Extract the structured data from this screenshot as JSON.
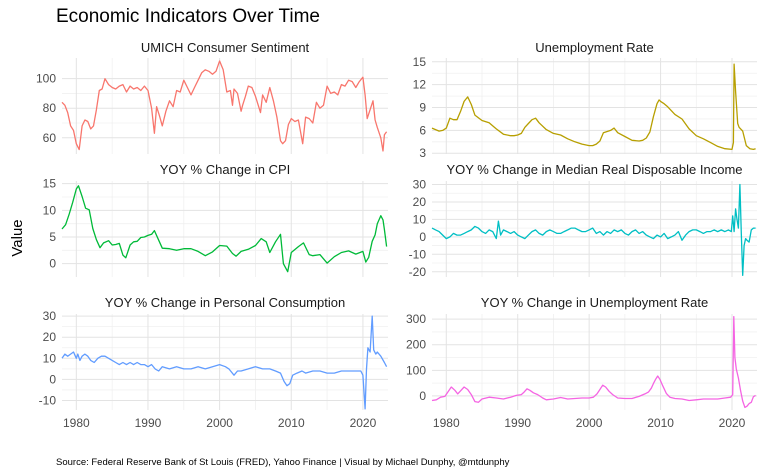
{
  "page": {
    "title": "Economic Indicators Over Time",
    "ylabel": "Value",
    "caption": "Source: Federal Reserve Bank of St Louis (FRED), Yahoo Finance | Visual by Michael Dunphy, @mtdunphy"
  },
  "chart_data": [
    {
      "type": "line",
      "title": "UMICH Consumer Sentiment",
      "color": "#F8766D",
      "xlim": [
        1978,
        2023.5
      ],
      "ylim": [
        49,
        114
      ],
      "yticks": [
        60,
        80,
        100
      ],
      "x": [
        1978.0,
        1978.4,
        1978.8,
        1979.2,
        1979.6,
        1980.0,
        1980.4,
        1980.8,
        1981.2,
        1981.6,
        1982.0,
        1982.4,
        1982.8,
        1983.2,
        1983.6,
        1984.0,
        1984.5,
        1985.0,
        1985.5,
        1986.0,
        1986.5,
        1987.0,
        1987.5,
        1988.0,
        1988.5,
        1989.0,
        1989.5,
        1990.0,
        1990.5,
        1990.9,
        1991.2,
        1991.6,
        1992.0,
        1992.5,
        1993.0,
        1993.5,
        1994.0,
        1994.5,
        1995.0,
        1995.5,
        1996.0,
        1996.5,
        1997.0,
        1997.5,
        1998.0,
        1998.5,
        1999.0,
        1999.5,
        2000.0,
        2000.5,
        2001.0,
        2001.5,
        2001.8,
        2002.0,
        2002.5,
        2003.0,
        2003.2,
        2003.6,
        2004.0,
        2004.5,
        2005.0,
        2005.7,
        2006.0,
        2006.5,
        2007.0,
        2007.5,
        2008.0,
        2008.5,
        2008.8,
        2009.2,
        2009.6,
        2010.0,
        2010.5,
        2011.0,
        2011.6,
        2012.0,
        2012.5,
        2013.0,
        2013.5,
        2014.0,
        2014.5,
        2015.0,
        2015.5,
        2016.0,
        2016.5,
        2017.0,
        2017.5,
        2018.0,
        2018.5,
        2019.0,
        2019.5,
        2020.0,
        2020.3,
        2020.6,
        2021.0,
        2021.4,
        2021.7,
        2022.0,
        2022.5,
        2022.8,
        2023.0,
        2023.3
      ],
      "values": [
        84,
        82,
        77,
        68,
        65,
        56,
        52,
        68,
        72,
        71,
        66,
        68,
        79,
        92,
        93,
        100,
        96,
        94,
        93,
        95,
        96,
        91,
        95,
        93,
        94,
        92,
        95,
        92,
        80,
        63,
        81,
        75,
        68,
        78,
        85,
        81,
        92,
        91,
        99,
        94,
        89,
        94,
        99,
        104,
        106,
        105,
        103,
        105,
        112,
        106,
        91,
        92,
        82,
        93,
        90,
        78,
        82,
        88,
        95,
        94,
        88,
        77,
        89,
        84,
        94,
        85,
        74,
        58,
        56,
        58,
        69,
        73,
        71,
        72,
        56,
        74,
        73,
        70,
        84,
        80,
        82,
        95,
        90,
        91,
        89,
        96,
        95,
        99,
        98,
        94,
        98,
        101,
        89,
        73,
        79,
        85,
        72,
        67,
        60,
        51,
        62,
        64
      ]
    },
    {
      "type": "line",
      "title": "Unemployment Rate",
      "color": "#B79F00",
      "xlim": [
        1978,
        2023.5
      ],
      "ylim": [
        2.9,
        15.5
      ],
      "yticks": [
        3,
        6,
        9,
        12,
        15
      ],
      "x": [
        1978.0,
        1979.0,
        1979.5,
        1980.0,
        1980.5,
        1981.0,
        1981.5,
        1982.0,
        1982.5,
        1983.0,
        1983.5,
        1984.0,
        1985.0,
        1986.0,
        1987.0,
        1988.0,
        1989.0,
        1989.5,
        1990.0,
        1990.5,
        1991.0,
        1991.5,
        1992.0,
        1992.5,
        1993.0,
        1994.0,
        1995.0,
        1996.0,
        1997.0,
        1998.0,
        1999.0,
        2000.0,
        2000.5,
        2001.0,
        2001.5,
        2002.0,
        2003.0,
        2003.5,
        2004.0,
        2005.0,
        2006.0,
        2007.0,
        2007.5,
        2008.0,
        2008.5,
        2009.0,
        2009.5,
        2009.8,
        2010.0,
        2010.5,
        2011.0,
        2012.0,
        2013.0,
        2014.0,
        2015.0,
        2016.0,
        2017.0,
        2018.0,
        2019.0,
        2020.0,
        2020.2,
        2020.3,
        2020.5,
        2020.8,
        2021.0,
        2021.5,
        2022.0,
        2022.5,
        2023.0,
        2023.3
      ],
      "values": [
        6.3,
        5.9,
        6.0,
        6.3,
        7.6,
        7.4,
        7.4,
        8.5,
        9.8,
        10.4,
        9.4,
        8.0,
        7.3,
        7.0,
        6.2,
        5.5,
        5.3,
        5.3,
        5.4,
        5.6,
        6.4,
        6.9,
        7.4,
        7.6,
        7.0,
        6.1,
        5.6,
        5.4,
        4.9,
        4.5,
        4.2,
        4.0,
        4.0,
        4.2,
        4.6,
        5.7,
        6.0,
        6.3,
        5.7,
        5.2,
        4.7,
        4.6,
        4.7,
        5.0,
        5.8,
        7.8,
        9.5,
        10.0,
        9.8,
        9.5,
        9.1,
        8.1,
        7.5,
        6.2,
        5.3,
        4.9,
        4.4,
        3.9,
        3.6,
        3.5,
        4.4,
        14.7,
        11.1,
        6.9,
        6.4,
        5.9,
        4.0,
        3.6,
        3.5,
        3.6
      ]
    },
    {
      "type": "line",
      "title": "YOY % Change in CPI",
      "color": "#00BA38",
      "xlim": [
        1978,
        2023.5
      ],
      "ylim": [
        -2.5,
        15.5
      ],
      "yticks": [
        0,
        5,
        10,
        15
      ],
      "x": [
        1978.0,
        1978.5,
        1979.0,
        1979.5,
        1980.0,
        1980.3,
        1980.8,
        1981.3,
        1981.8,
        1982.3,
        1982.8,
        1983.3,
        1983.8,
        1984.5,
        1985.0,
        1985.5,
        1986.0,
        1986.5,
        1986.9,
        1987.5,
        1988.0,
        1988.5,
        1989.0,
        1989.5,
        1990.0,
        1990.5,
        1990.9,
        1991.5,
        1992.0,
        1993.0,
        1994.0,
        1995.0,
        1996.0,
        1997.0,
        1998.0,
        1999.0,
        2000.0,
        2001.0,
        2001.8,
        2002.3,
        2003.0,
        2004.0,
        2005.0,
        2005.8,
        2006.5,
        2007.0,
        2007.8,
        2008.5,
        2008.9,
        2009.5,
        2010.0,
        2011.0,
        2011.7,
        2012.5,
        2013.0,
        2014.0,
        2015.0,
        2016.0,
        2017.0,
        2018.0,
        2019.0,
        2020.0,
        2020.4,
        2020.8,
        2021.3,
        2021.7,
        2022.0,
        2022.5,
        2022.8,
        2023.0,
        2023.3
      ],
      "values": [
        6.5,
        7.3,
        9.3,
        11.5,
        14.0,
        14.6,
        12.6,
        10.4,
        10.1,
        6.6,
        4.5,
        3.0,
        3.9,
        4.3,
        3.5,
        3.6,
        3.8,
        1.6,
        1.1,
        3.5,
        4.1,
        4.2,
        4.9,
        5.0,
        5.3,
        5.5,
        6.2,
        4.4,
        2.9,
        2.8,
        2.5,
        2.8,
        2.8,
        2.3,
        1.5,
        2.2,
        3.4,
        3.3,
        1.9,
        1.4,
        2.3,
        2.7,
        3.4,
        4.7,
        4.1,
        2.1,
        4.1,
        5.5,
        0.0,
        -1.5,
        2.1,
        3.2,
        3.9,
        1.7,
        1.5,
        1.7,
        0.1,
        1.3,
        2.1,
        2.4,
        1.8,
        2.3,
        0.3,
        1.2,
        4.2,
        5.4,
        7.5,
        9.0,
        8.2,
        6.4,
        3.2
      ]
    },
    {
      "type": "line",
      "title": "YOY % Change in Median Real Disposable Income",
      "color": "#00BFC4",
      "xlim": [
        1978,
        2023.5
      ],
      "ylim": [
        -23,
        32
      ],
      "yticks": [
        -20,
        -10,
        0,
        10,
        20,
        30
      ],
      "x": [
        1978.0,
        1978.5,
        1979.0,
        1979.5,
        1980.0,
        1980.5,
        1981.0,
        1981.5,
        1982.0,
        1982.5,
        1983.0,
        1983.5,
        1984.0,
        1984.5,
        1985.0,
        1985.5,
        1986.0,
        1986.5,
        1987.0,
        1987.3,
        1987.6,
        1988.0,
        1988.5,
        1989.0,
        1989.5,
        1990.0,
        1990.5,
        1991.0,
        1991.5,
        1992.0,
        1992.5,
        1993.0,
        1993.5,
        1994.0,
        1994.5,
        1995.0,
        1995.5,
        1996.0,
        1996.5,
        1997.0,
        1997.5,
        1998.0,
        1998.5,
        1999.0,
        1999.5,
        2000.0,
        2000.5,
        2001.0,
        2001.5,
        2002.0,
        2002.5,
        2003.0,
        2003.5,
        2004.0,
        2004.5,
        2005.0,
        2005.5,
        2006.0,
        2006.5,
        2007.0,
        2007.5,
        2008.0,
        2008.5,
        2009.0,
        2009.5,
        2010.0,
        2010.5,
        2011.0,
        2011.5,
        2012.0,
        2012.5,
        2013.0,
        2013.5,
        2014.0,
        2014.5,
        2015.0,
        2015.5,
        2016.0,
        2016.5,
        2017.0,
        2017.5,
        2018.0,
        2018.5,
        2019.0,
        2019.5,
        2019.9,
        2020.1,
        2020.3,
        2020.5,
        2020.7,
        2020.9,
        2021.1,
        2021.3,
        2021.5,
        2021.7,
        2021.9,
        2022.1,
        2022.4,
        2022.7,
        2023.0,
        2023.3
      ],
      "values": [
        5,
        4,
        3,
        1,
        -1,
        0,
        2,
        1,
        1,
        2,
        3,
        4,
        6,
        5,
        3,
        2,
        4,
        3,
        -1,
        9,
        1,
        4,
        3,
        2,
        3,
        1,
        0,
        -1,
        1,
        3,
        4,
        2,
        1,
        3,
        4,
        3,
        2,
        2,
        3,
        4,
        5,
        5,
        4,
        3,
        3,
        4,
        5,
        2,
        3,
        1,
        3,
        2,
        4,
        3,
        4,
        2,
        1,
        3,
        4,
        2,
        3,
        1,
        0,
        -1,
        1,
        0,
        2,
        -1,
        0,
        1,
        3,
        -2,
        1,
        3,
        4,
        4,
        3,
        2,
        3,
        3,
        4,
        3,
        4,
        3,
        4,
        3,
        12,
        3,
        16,
        10,
        5,
        30,
        2,
        -22,
        -5,
        -1,
        -2,
        -3,
        4,
        5,
        5
      ]
    },
    {
      "type": "line",
      "title": "YOY % Change in Personal Consumption",
      "color": "#619CFF",
      "xlim": [
        1978,
        2023.5
      ],
      "ylim": [
        -14.5,
        31
      ],
      "yticks": [
        -10,
        0,
        10,
        20,
        30
      ],
      "x": [
        1978.0,
        1978.4,
        1978.8,
        1979.2,
        1979.6,
        1980.0,
        1980.2,
        1980.5,
        1980.8,
        1981.2,
        1981.6,
        1982.0,
        1982.5,
        1983.0,
        1983.5,
        1984.0,
        1984.5,
        1985.0,
        1985.5,
        1986.0,
        1986.5,
        1987.0,
        1987.5,
        1988.0,
        1988.5,
        1989.0,
        1989.5,
        1990.0,
        1990.5,
        1991.0,
        1991.5,
        1992.0,
        1993.0,
        1994.0,
        1995.0,
        1996.0,
        1997.0,
        1998.0,
        1999.0,
        2000.0,
        2000.8,
        2001.3,
        2002.0,
        2002.5,
        2003.0,
        2004.0,
        2005.0,
        2006.0,
        2007.0,
        2007.8,
        2008.5,
        2009.0,
        2009.4,
        2009.8,
        2010.2,
        2010.8,
        2011.5,
        2012.0,
        2013.0,
        2014.0,
        2015.0,
        2016.0,
        2017.0,
        2018.0,
        2019.0,
        2019.7,
        2020.0,
        2020.3,
        2020.5,
        2020.7,
        2021.0,
        2021.3,
        2021.5,
        2021.8,
        2022.0,
        2022.5,
        2023.0,
        2023.3
      ],
      "values": [
        10,
        12,
        11,
        12,
        13,
        10,
        12,
        9,
        11,
        12,
        11,
        9,
        8,
        10,
        11,
        11,
        10,
        9,
        8,
        7,
        8,
        7,
        8,
        7,
        8,
        7,
        7,
        6,
        7,
        5,
        4,
        6,
        5,
        6,
        5,
        5,
        6,
        5,
        6,
        7,
        6,
        5,
        2,
        4,
        4,
        5,
        6,
        5,
        5,
        4,
        3,
        -1,
        -3,
        -2,
        2,
        3,
        4,
        3,
        4,
        4,
        3,
        3,
        4,
        4,
        4,
        4,
        2,
        -14,
        5,
        15,
        13,
        30,
        14,
        12,
        13,
        11,
        8,
        6
      ]
    },
    {
      "type": "line",
      "title": "YOY % Change in Unemployment Rate",
      "color": "#F564E3",
      "xlim": [
        1978,
        2023.5
      ],
      "ylim": [
        -55,
        320
      ],
      "yticks": [
        0,
        100,
        200,
        300
      ],
      "x": [
        1978.0,
        1978.6,
        1979.2,
        1979.8,
        1980.3,
        1980.7,
        1981.2,
        1981.6,
        1982.0,
        1982.5,
        1983.0,
        1983.5,
        1984.0,
        1984.5,
        1985.0,
        1986.0,
        1987.0,
        1988.0,
        1989.0,
        1989.8,
        1990.5,
        1990.9,
        1991.3,
        1991.7,
        1992.2,
        1992.8,
        1993.5,
        1994.0,
        1995.0,
        1996.0,
        1997.0,
        1998.0,
        1999.0,
        2000.0,
        2000.6,
        2001.1,
        2001.5,
        2001.9,
        2002.3,
        2002.8,
        2003.3,
        2004.0,
        2005.0,
        2006.0,
        2007.0,
        2007.8,
        2008.3,
        2008.7,
        2009.0,
        2009.3,
        2009.6,
        2009.9,
        2010.3,
        2010.8,
        2011.3,
        2012.0,
        2013.0,
        2014.0,
        2015.0,
        2016.0,
        2017.0,
        2018.0,
        2019.0,
        2019.8,
        2020.1,
        2020.25,
        2020.4,
        2020.6,
        2020.9,
        2021.2,
        2021.5,
        2021.8,
        2022.1,
        2022.4,
        2022.7,
        2023.0,
        2023.3
      ],
      "values": [
        -18,
        -15,
        -5,
        -2,
        18,
        35,
        22,
        8,
        20,
        35,
        25,
        5,
        -22,
        -25,
        -12,
        -5,
        -8,
        -12,
        -5,
        2,
        5,
        15,
        28,
        22,
        12,
        5,
        -8,
        -15,
        -12,
        -6,
        -12,
        -10,
        -8,
        -8,
        -5,
        8,
        25,
        42,
        35,
        18,
        5,
        -8,
        -10,
        -10,
        -2,
        8,
        15,
        30,
        48,
        65,
        78,
        65,
        40,
        10,
        -5,
        -10,
        -12,
        -18,
        -15,
        -12,
        -12,
        -12,
        -8,
        -5,
        5,
        310,
        150,
        105,
        70,
        20,
        -20,
        -45,
        -40,
        -30,
        -25,
        -3,
        2
      ]
    }
  ]
}
